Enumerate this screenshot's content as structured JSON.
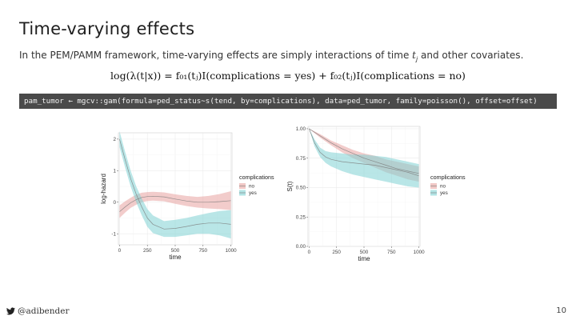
{
  "slide": {
    "title": "Time-varying effects",
    "intro_pre": "In the PEM/PAMM framework, time-varying effects are simply interactions of time ",
    "intro_var": "t",
    "intro_sub": "j",
    "intro_post": " and other covariates.",
    "formula": "log(λ(t|x)) = f₀₁(tⱼ)I(complications = yes) + f₀₂(tⱼ)I(complications = no)",
    "code": "pam_tumor ← mgcv::gam(formula=ped_status~s(tend, by=complications), data=ped_tumor, family=poisson(), offset=offset)"
  },
  "footer": {
    "handle": "@adibender",
    "page_number": "10",
    "icon": "twitter-icon"
  },
  "chart_data": [
    {
      "type": "line",
      "title": "",
      "xlabel": "time",
      "ylabel": "log-hazard",
      "xlim": [
        -10,
        1010
      ],
      "ylim": [
        -1.35,
        2.2
      ],
      "x_ticks": [
        0,
        250,
        500,
        750,
        1000
      ],
      "y_ticks": [
        -1,
        0,
        1,
        2
      ],
      "x_tick_labels": [
        "0",
        "250",
        "500",
        "750",
        "1000"
      ],
      "y_tick_labels": [
        "-1",
        "0",
        "1",
        "2"
      ],
      "grid": true,
      "legend_title": "complications",
      "legend_position": "right",
      "series": [
        {
          "name": "no",
          "color": "#e8a3a0",
          "x": [
            0,
            50,
            100,
            150,
            200,
            250,
            300,
            400,
            500,
            600,
            700,
            800,
            900,
            1000
          ],
          "y": [
            -0.3,
            -0.15,
            -0.02,
            0.08,
            0.15,
            0.18,
            0.19,
            0.17,
            0.1,
            0.04,
            0.0,
            0.0,
            0.02,
            0.05
          ],
          "lower": [
            -0.5,
            -0.33,
            -0.18,
            -0.08,
            0.0,
            0.04,
            0.05,
            0.03,
            -0.05,
            -0.12,
            -0.17,
            -0.2,
            -0.22,
            -0.25
          ],
          "upper": [
            -0.1,
            0.03,
            0.14,
            0.24,
            0.3,
            0.32,
            0.33,
            0.31,
            0.25,
            0.2,
            0.17,
            0.2,
            0.26,
            0.35
          ]
        },
        {
          "name": "yes",
          "color": "#7fd2d4",
          "x": [
            0,
            50,
            100,
            150,
            200,
            250,
            300,
            400,
            500,
            600,
            700,
            800,
            900,
            1000
          ],
          "y": [
            2.0,
            1.35,
            0.75,
            0.25,
            -0.15,
            -0.5,
            -0.7,
            -0.85,
            -0.83,
            -0.77,
            -0.7,
            -0.66,
            -0.66,
            -0.7
          ],
          "lower": [
            1.75,
            1.1,
            0.5,
            0.0,
            -0.42,
            -0.78,
            -0.98,
            -1.1,
            -1.1,
            -1.05,
            -1.0,
            -1.0,
            -1.05,
            -1.15
          ],
          "upper": [
            2.25,
            1.6,
            1.0,
            0.5,
            0.12,
            -0.22,
            -0.42,
            -0.6,
            -0.56,
            -0.5,
            -0.42,
            -0.34,
            -0.28,
            -0.25
          ]
        }
      ]
    },
    {
      "type": "line",
      "title": "",
      "xlabel": "time",
      "ylabel": "S(t)",
      "xlim": [
        -10,
        1010
      ],
      "ylim": [
        0,
        1.02
      ],
      "x_ticks": [
        0,
        250,
        500,
        750,
        1000
      ],
      "y_ticks": [
        0,
        0.25,
        0.5,
        0.75,
        1.0
      ],
      "x_tick_labels": [
        "0",
        "250",
        "500",
        "750",
        "1000"
      ],
      "y_tick_labels": [
        "0.00",
        "0.25",
        "0.50",
        "0.75",
        "1.00"
      ],
      "grid": true,
      "legend_title": "complications",
      "legend_position": "right",
      "series": [
        {
          "name": "no",
          "color": "#e8a3a0",
          "x": [
            0,
            100,
            200,
            300,
            400,
            500,
            600,
            700,
            800,
            900,
            1000
          ],
          "y": [
            1.0,
            0.94,
            0.88,
            0.83,
            0.79,
            0.75,
            0.72,
            0.69,
            0.66,
            0.64,
            0.62
          ],
          "lower": [
            1.0,
            0.925,
            0.86,
            0.8,
            0.75,
            0.71,
            0.67,
            0.63,
            0.6,
            0.57,
            0.55
          ],
          "upper": [
            1.0,
            0.955,
            0.9,
            0.86,
            0.82,
            0.79,
            0.77,
            0.74,
            0.72,
            0.7,
            0.68
          ]
        },
        {
          "name": "yes",
          "color": "#7fd2d4",
          "x": [
            0,
            50,
            100,
            150,
            200,
            300,
            400,
            500,
            600,
            700,
            800,
            900,
            1000
          ],
          "y": [
            1.0,
            0.88,
            0.8,
            0.76,
            0.74,
            0.72,
            0.71,
            0.7,
            0.69,
            0.67,
            0.65,
            0.63,
            0.6
          ],
          "lower": [
            1.0,
            0.85,
            0.76,
            0.71,
            0.68,
            0.64,
            0.61,
            0.59,
            0.57,
            0.55,
            0.53,
            0.51,
            0.5
          ],
          "upper": [
            1.0,
            0.91,
            0.84,
            0.81,
            0.8,
            0.79,
            0.78,
            0.78,
            0.77,
            0.76,
            0.74,
            0.72,
            0.7
          ]
        }
      ]
    }
  ]
}
